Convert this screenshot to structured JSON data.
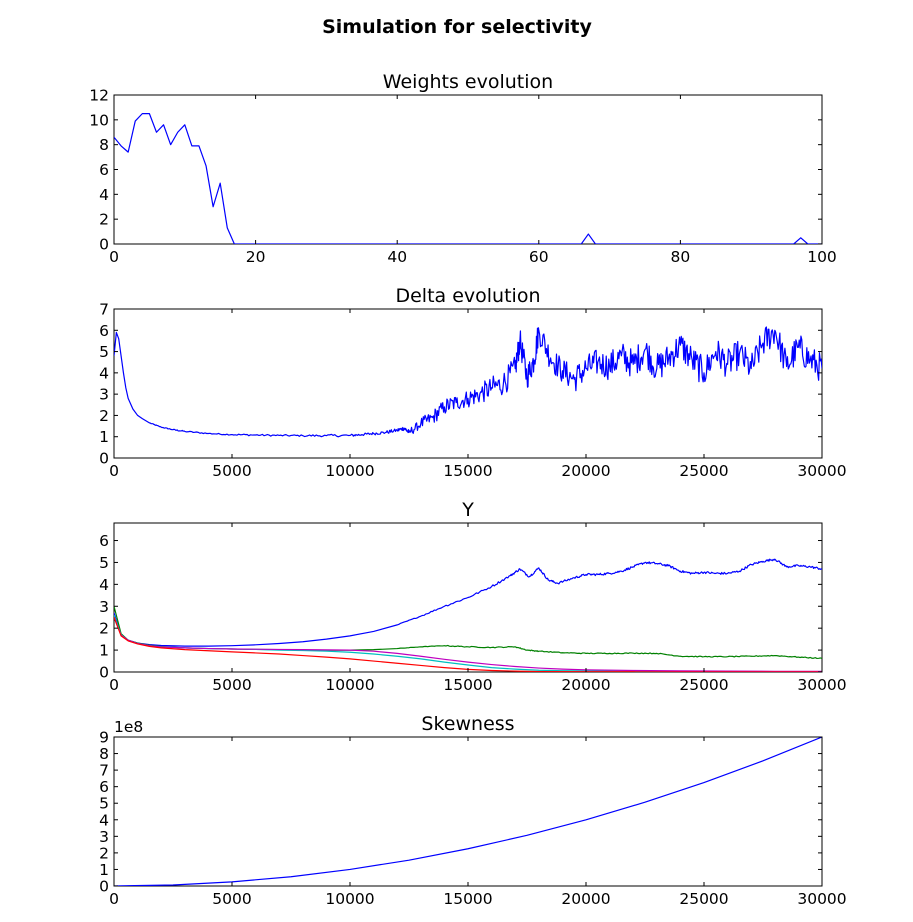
{
  "figure": {
    "title": "Simulation for selectivity"
  },
  "chart_data": [
    {
      "type": "line",
      "title": "Weights evolution",
      "xlabel": "",
      "ylabel": "",
      "xlim": [
        0,
        100
      ],
      "ylim": [
        0,
        12
      ],
      "xticks": [
        0,
        20,
        40,
        60,
        80,
        100
      ],
      "yticks": [
        0,
        2,
        4,
        6,
        8,
        10,
        12
      ],
      "offset_text": "",
      "series": [
        {
          "color": "#0000ff",
          "x": [
            0,
            1,
            2,
            3,
            4,
            5,
            6,
            7,
            8,
            9,
            10,
            11,
            12,
            13,
            14,
            15,
            16,
            17,
            18,
            66,
            67,
            68,
            96,
            97,
            98,
            100
          ],
          "y": [
            8.6,
            7.9,
            7.4,
            9.9,
            10.5,
            10.5,
            9.0,
            9.6,
            8.0,
            9.0,
            9.6,
            7.9,
            7.9,
            6.3,
            3.0,
            4.9,
            1.3,
            0,
            0,
            0,
            0.8,
            0,
            0,
            0.5,
            0,
            0
          ]
        }
      ]
    },
    {
      "type": "line",
      "title": "Delta evolution",
      "xlabel": "",
      "ylabel": "",
      "xlim": [
        0,
        30000
      ],
      "ylim": [
        0,
        7
      ],
      "xticks": [
        0,
        5000,
        10000,
        15000,
        20000,
        25000,
        30000
      ],
      "yticks": [
        0,
        1,
        2,
        3,
        4,
        5,
        6,
        7
      ],
      "offset_text": "",
      "series": [
        {
          "color": "#0000ff",
          "x": [
            0,
            100,
            200,
            300,
            400,
            500,
            600,
            800,
            1000,
            1200,
            1500,
            2000,
            2500,
            3000,
            4000,
            5000,
            6000,
            7000,
            8000,
            9000,
            10000,
            10500,
            11000,
            11500,
            12000,
            12300,
            12500,
            13000,
            13500,
            14000,
            14500,
            15000,
            15500,
            16000,
            16500,
            17000,
            17200,
            17500,
            17800,
            18000,
            18500,
            19000,
            19500,
            20000,
            20500,
            21000,
            21500,
            22000,
            22500,
            23000,
            23500,
            24000,
            24500,
            25000,
            25500,
            26000,
            26500,
            27000,
            27500,
            28000,
            28500,
            29000,
            29500,
            30000
          ],
          "y": [
            4.8,
            5.9,
            5.6,
            4.8,
            4.0,
            3.3,
            2.8,
            2.3,
            2.0,
            1.85,
            1.65,
            1.45,
            1.33,
            1.25,
            1.15,
            1.1,
            1.08,
            1.06,
            1.05,
            1.05,
            1.06,
            1.1,
            1.15,
            1.2,
            1.3,
            1.4,
            1.2,
            1.6,
            1.9,
            2.4,
            2.6,
            2.8,
            3.0,
            3.3,
            3.5,
            4.2,
            5.5,
            3.8,
            4.6,
            6.0,
            4.7,
            4.1,
            3.7,
            4.2,
            4.5,
            4.3,
            4.8,
            4.4,
            5.1,
            4.2,
            4.7,
            5.3,
            4.6,
            4.0,
            5.0,
            4.4,
            4.9,
            4.2,
            5.4,
            6.0,
            4.3,
            5.2,
            4.6,
            4.2
          ],
          "noise": [
            0,
            0,
            0,
            0,
            0,
            0,
            0,
            0,
            0,
            0,
            0,
            0.02,
            0.02,
            0.03,
            0.03,
            0.03,
            0.04,
            0.04,
            0.04,
            0.05,
            0.06,
            0.06,
            0.06,
            0.07,
            0.08,
            0.1,
            0.12,
            0.2,
            0.3,
            0.35,
            0.4,
            0.4,
            0.45,
            0.5,
            0.55,
            0.6,
            0.6,
            0.6,
            0.6,
            0.6,
            0.6,
            0.6,
            0.6,
            0.65,
            0.65,
            0.65,
            0.7,
            0.7,
            0.7,
            0.7,
            0.7,
            0.7,
            0.7,
            0.7,
            0.7,
            0.7,
            0.7,
            0.7,
            0.7,
            0.7,
            0.7,
            0.7,
            0.7,
            0.7
          ]
        }
      ]
    },
    {
      "type": "line",
      "title": "Y",
      "xlabel": "",
      "ylabel": "",
      "xlim": [
        0,
        30000
      ],
      "ylim": [
        0,
        6.8
      ],
      "xticks": [
        0,
        5000,
        10000,
        15000,
        20000,
        25000,
        30000
      ],
      "yticks": [
        0,
        1,
        2,
        3,
        4,
        5,
        6
      ],
      "offset_text": "",
      "series": [
        {
          "color": "#0000ff",
          "x": [
            0,
            300,
            600,
            1000,
            1500,
            2000,
            3000,
            4000,
            5000,
            6000,
            7000,
            8000,
            9000,
            10000,
            11000,
            12000,
            13000,
            14000,
            15000,
            16000,
            16800,
            17200,
            17600,
            18000,
            18400,
            18800,
            19500,
            20000,
            20500,
            21000,
            21500,
            22000,
            22500,
            23000,
            23500,
            24000,
            24500,
            25000,
            25500,
            26000,
            26500,
            27000,
            27500,
            28000,
            28500,
            29000,
            29500,
            30000
          ],
          "y": [
            2.7,
            1.7,
            1.45,
            1.32,
            1.25,
            1.21,
            1.18,
            1.18,
            1.2,
            1.24,
            1.3,
            1.38,
            1.5,
            1.65,
            1.85,
            2.15,
            2.55,
            3.0,
            3.4,
            3.9,
            4.4,
            4.7,
            4.35,
            4.75,
            4.2,
            4.05,
            4.3,
            4.45,
            4.45,
            4.5,
            4.6,
            4.8,
            5.0,
            4.95,
            4.85,
            4.6,
            4.5,
            4.55,
            4.5,
            4.5,
            4.6,
            4.9,
            5.05,
            5.15,
            4.8,
            4.85,
            4.8,
            4.7
          ],
          "noise": [
            0,
            0,
            0,
            0,
            0,
            0,
            0,
            0,
            0,
            0,
            0,
            0,
            0,
            0,
            0,
            0,
            0.02,
            0.03,
            0.04,
            0.04,
            0.05,
            0.05,
            0.05,
            0.05,
            0.05,
            0.05,
            0.05,
            0.05,
            0.05,
            0.05,
            0.05,
            0.05,
            0.05,
            0.05,
            0.05,
            0.05,
            0.05,
            0.05,
            0.05,
            0.05,
            0.05,
            0.05,
            0.05,
            0.05,
            0.05,
            0.05,
            0.05,
            0.05
          ]
        },
        {
          "color": "#008000",
          "x": [
            0,
            300,
            600,
            1000,
            1500,
            2000,
            3000,
            4000,
            5000,
            6000,
            7000,
            8000,
            9000,
            10000,
            11000,
            12000,
            13000,
            14000,
            15000,
            16000,
            17000,
            17500,
            18000,
            19000,
            20000,
            21000,
            22000,
            23000,
            24000,
            25000,
            26000,
            27000,
            28000,
            29000,
            30000
          ],
          "y": [
            3.0,
            1.75,
            1.45,
            1.32,
            1.22,
            1.16,
            1.1,
            1.07,
            1.05,
            1.03,
            1.02,
            1.0,
            0.99,
            1.0,
            1.02,
            1.07,
            1.15,
            1.2,
            1.15,
            1.12,
            1.15,
            1.0,
            0.95,
            0.88,
            0.85,
            0.85,
            0.86,
            0.85,
            0.72,
            0.7,
            0.7,
            0.72,
            0.75,
            0.68,
            0.62
          ],
          "noise": [
            0,
            0,
            0,
            0,
            0,
            0,
            0,
            0,
            0,
            0,
            0,
            0,
            0,
            0,
            0,
            0,
            0.01,
            0.01,
            0.02,
            0.02,
            0.02,
            0.02,
            0.02,
            0.02,
            0.02,
            0.02,
            0.02,
            0.02,
            0.02,
            0.02,
            0.02,
            0.02,
            0.02,
            0.02,
            0.02
          ]
        },
        {
          "color": "#00bfbf",
          "x": [
            0,
            300,
            600,
            1000,
            1500,
            2000,
            3000,
            4000,
            5000,
            6000,
            7000,
            8000,
            9000,
            10000,
            11000,
            12000,
            13000,
            14000,
            15000,
            16000,
            17000,
            18000,
            19000,
            20000,
            22000,
            24000,
            26000,
            28000,
            30000
          ],
          "y": [
            2.6,
            1.7,
            1.45,
            1.3,
            1.2,
            1.15,
            1.1,
            1.07,
            1.05,
            1.03,
            1.0,
            0.98,
            0.95,
            0.9,
            0.82,
            0.72,
            0.6,
            0.45,
            0.32,
            0.2,
            0.13,
            0.08,
            0.06,
            0.05,
            0.03,
            0.02,
            0.02,
            0.01,
            0.01
          ]
        },
        {
          "color": "#bf00bf",
          "x": [
            0,
            300,
            600,
            1000,
            1500,
            2000,
            3000,
            4000,
            5000,
            6000,
            7000,
            8000,
            9000,
            10000,
            11000,
            12000,
            13000,
            14000,
            15000,
            16000,
            17000,
            18000,
            19000,
            20000,
            22000,
            24000,
            26000,
            28000,
            30000
          ],
          "y": [
            2.5,
            1.68,
            1.45,
            1.3,
            1.2,
            1.14,
            1.1,
            1.07,
            1.05,
            1.04,
            1.03,
            1.02,
            1.01,
            1.0,
            0.95,
            0.85,
            0.72,
            0.58,
            0.45,
            0.34,
            0.25,
            0.18,
            0.13,
            0.1,
            0.07,
            0.05,
            0.04,
            0.03,
            0.03
          ]
        },
        {
          "color": "#ff0000",
          "x": [
            0,
            300,
            600,
            1000,
            1500,
            2000,
            3000,
            4000,
            5000,
            6000,
            7000,
            8000,
            9000,
            10000,
            11000,
            12000,
            13000,
            14000,
            15000,
            16000,
            17000,
            18000,
            20000,
            22000,
            24000,
            26000,
            28000,
            30000
          ],
          "y": [
            2.5,
            1.65,
            1.42,
            1.28,
            1.17,
            1.1,
            1.02,
            0.97,
            0.92,
            0.87,
            0.82,
            0.75,
            0.68,
            0.6,
            0.5,
            0.4,
            0.3,
            0.2,
            0.12,
            0.07,
            0.04,
            0.02,
            0.01,
            0.01,
            0.0,
            0.0,
            0.0,
            0.0
          ]
        }
      ]
    },
    {
      "type": "line",
      "title": "Skewness",
      "xlabel": "",
      "ylabel": "",
      "xlim": [
        0,
        30000
      ],
      "ylim": [
        0,
        9
      ],
      "xticks": [
        0,
        5000,
        10000,
        15000,
        20000,
        25000,
        30000
      ],
      "yticks": [
        0,
        1,
        2,
        3,
        4,
        5,
        6,
        7,
        8,
        9
      ],
      "offset_text": "1e8",
      "series": [
        {
          "color": "#0000ff",
          "x": [
            0,
            2500,
            5000,
            7500,
            10000,
            12500,
            15000,
            17500,
            20000,
            22500,
            25000,
            27500,
            30000
          ],
          "y": [
            0,
            0.06,
            0.25,
            0.56,
            1.0,
            1.56,
            2.25,
            3.06,
            4.0,
            5.06,
            6.25,
            7.56,
            9.0
          ]
        }
      ]
    }
  ]
}
